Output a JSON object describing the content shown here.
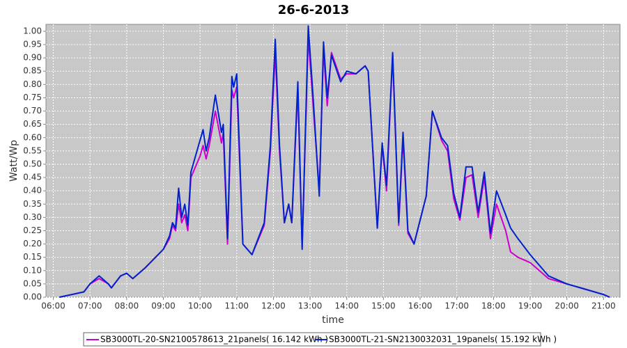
{
  "chart_data": {
    "type": "line",
    "title": "26-6-2013",
    "xlabel": "time",
    "ylabel": "Watt/Wp",
    "x": [
      "06:10",
      "06:30",
      "06:50",
      "07:00",
      "07:15",
      "07:30",
      "07:35",
      "07:50",
      "08:00",
      "08:10",
      "08:30",
      "09:00",
      "09:10",
      "09:15",
      "09:20",
      "09:25",
      "09:30",
      "09:35",
      "09:40",
      "09:45",
      "10:00",
      "10:05",
      "10:10",
      "10:15",
      "10:25",
      "10:35",
      "10:38",
      "10:45",
      "10:52",
      "10:55",
      "11:00",
      "11:10",
      "11:25",
      "11:45",
      "11:55",
      "12:03",
      "12:10",
      "12:18",
      "12:25",
      "12:30",
      "12:40",
      "12:47",
      "12:57",
      "13:05",
      "13:15",
      "13:22",
      "13:28",
      "13:35",
      "13:50",
      "14:00",
      "14:15",
      "14:30",
      "14:35",
      "14:50",
      "14:58",
      "15:05",
      "15:15",
      "15:25",
      "15:32",
      "15:40",
      "15:50",
      "16:10",
      "16:20",
      "16:35",
      "16:45",
      "16:55",
      "17:05",
      "17:15",
      "17:25",
      "17:35",
      "17:45",
      "17:55",
      "18:05",
      "18:20",
      "18:28",
      "18:40",
      "19:00",
      "19:30",
      "20:00",
      "20:30",
      "21:00",
      "21:10"
    ],
    "series": [
      {
        "name": "SB3000TL-20-SN2100578613_21panels( 16.142 kWh )",
        "color": "#cc00cc",
        "values": [
          0,
          0.01,
          0.02,
          0.05,
          0.07,
          0.05,
          0.035,
          0.08,
          0.09,
          0.07,
          0.11,
          0.18,
          0.22,
          0.27,
          0.25,
          0.35,
          0.28,
          0.31,
          0.25,
          0.45,
          0.53,
          0.57,
          0.52,
          0.57,
          0.7,
          0.58,
          0.62,
          0.2,
          0.78,
          0.75,
          0.79,
          0.2,
          0.16,
          0.27,
          0.55,
          0.92,
          0.55,
          0.28,
          0.35,
          0.28,
          0.78,
          0.19,
          0.98,
          0.72,
          0.4,
          0.93,
          0.72,
          0.92,
          0.82,
          0.84,
          0.84,
          0.87,
          0.85,
          0.26,
          0.57,
          0.4,
          0.91,
          0.27,
          0.6,
          0.24,
          0.2,
          0.38,
          0.7,
          0.59,
          0.55,
          0.37,
          0.29,
          0.45,
          0.46,
          0.3,
          0.45,
          0.22,
          0.35,
          0.25,
          0.17,
          0.15,
          0.13,
          0.07,
          0.05,
          0.03,
          0.01,
          0
        ]
      },
      {
        "name": "SB3000TL-21-SN2130032031_19panels( 15.192 kWh )",
        "color": "#0022cc",
        "values": [
          0,
          0.01,
          0.02,
          0.05,
          0.08,
          0.05,
          0.035,
          0.08,
          0.09,
          0.07,
          0.11,
          0.18,
          0.23,
          0.28,
          0.26,
          0.41,
          0.3,
          0.35,
          0.27,
          0.47,
          0.59,
          0.63,
          0.55,
          0.6,
          0.76,
          0.62,
          0.65,
          0.22,
          0.83,
          0.79,
          0.84,
          0.2,
          0.16,
          0.28,
          0.57,
          0.97,
          0.57,
          0.28,
          0.35,
          0.28,
          0.81,
          0.18,
          1.02,
          0.75,
          0.38,
          0.96,
          0.75,
          0.91,
          0.81,
          0.85,
          0.84,
          0.87,
          0.85,
          0.26,
          0.58,
          0.42,
          0.92,
          0.28,
          0.62,
          0.25,
          0.2,
          0.38,
          0.7,
          0.6,
          0.57,
          0.39,
          0.3,
          0.49,
          0.49,
          0.32,
          0.47,
          0.24,
          0.4,
          0.31,
          0.26,
          0.22,
          0.16,
          0.08,
          0.05,
          0.03,
          0.01,
          0
        ]
      }
    ],
    "xlim": [
      "05:48",
      "21:27"
    ],
    "xticks": [
      "06:00",
      "07:00",
      "08:00",
      "09:00",
      "10:00",
      "11:00",
      "12:00",
      "13:00",
      "14:00",
      "15:00",
      "16:00",
      "17:00",
      "18:00",
      "19:00",
      "20:00",
      "21:00"
    ],
    "ylim": [
      0,
      1.026
    ],
    "yticks": [
      {
        "value": 0,
        "label": "0.00"
      },
      {
        "value": 0.05,
        "label": "0.05"
      },
      {
        "value": 0.1,
        "label": "0.10"
      },
      {
        "value": 0.15,
        "label": "0.15"
      },
      {
        "value": 0.2,
        "label": "0.20"
      },
      {
        "value": 0.25,
        "label": "0.25"
      },
      {
        "value": 0.3,
        "label": "0.30"
      },
      {
        "value": 0.35,
        "label": "0.35"
      },
      {
        "value": 0.4,
        "label": "0.40"
      },
      {
        "value": 0.45,
        "label": "0.45"
      },
      {
        "value": 0.5,
        "label": "0.50"
      },
      {
        "value": 0.55,
        "label": "0.55"
      },
      {
        "value": 0.6,
        "label": "0.60"
      },
      {
        "value": 0.65,
        "label": "0.65"
      },
      {
        "value": 0.7,
        "label": "0.70"
      },
      {
        "value": 0.75,
        "label": "0.75"
      },
      {
        "value": 0.8,
        "label": "0.80"
      },
      {
        "value": 0.85,
        "label": "0.85"
      },
      {
        "value": 0.9,
        "label": "0.90"
      },
      {
        "value": 0.95,
        "label": "0.95"
      },
      {
        "value": 1,
        "label": "1.00"
      }
    ],
    "grid": true
  }
}
